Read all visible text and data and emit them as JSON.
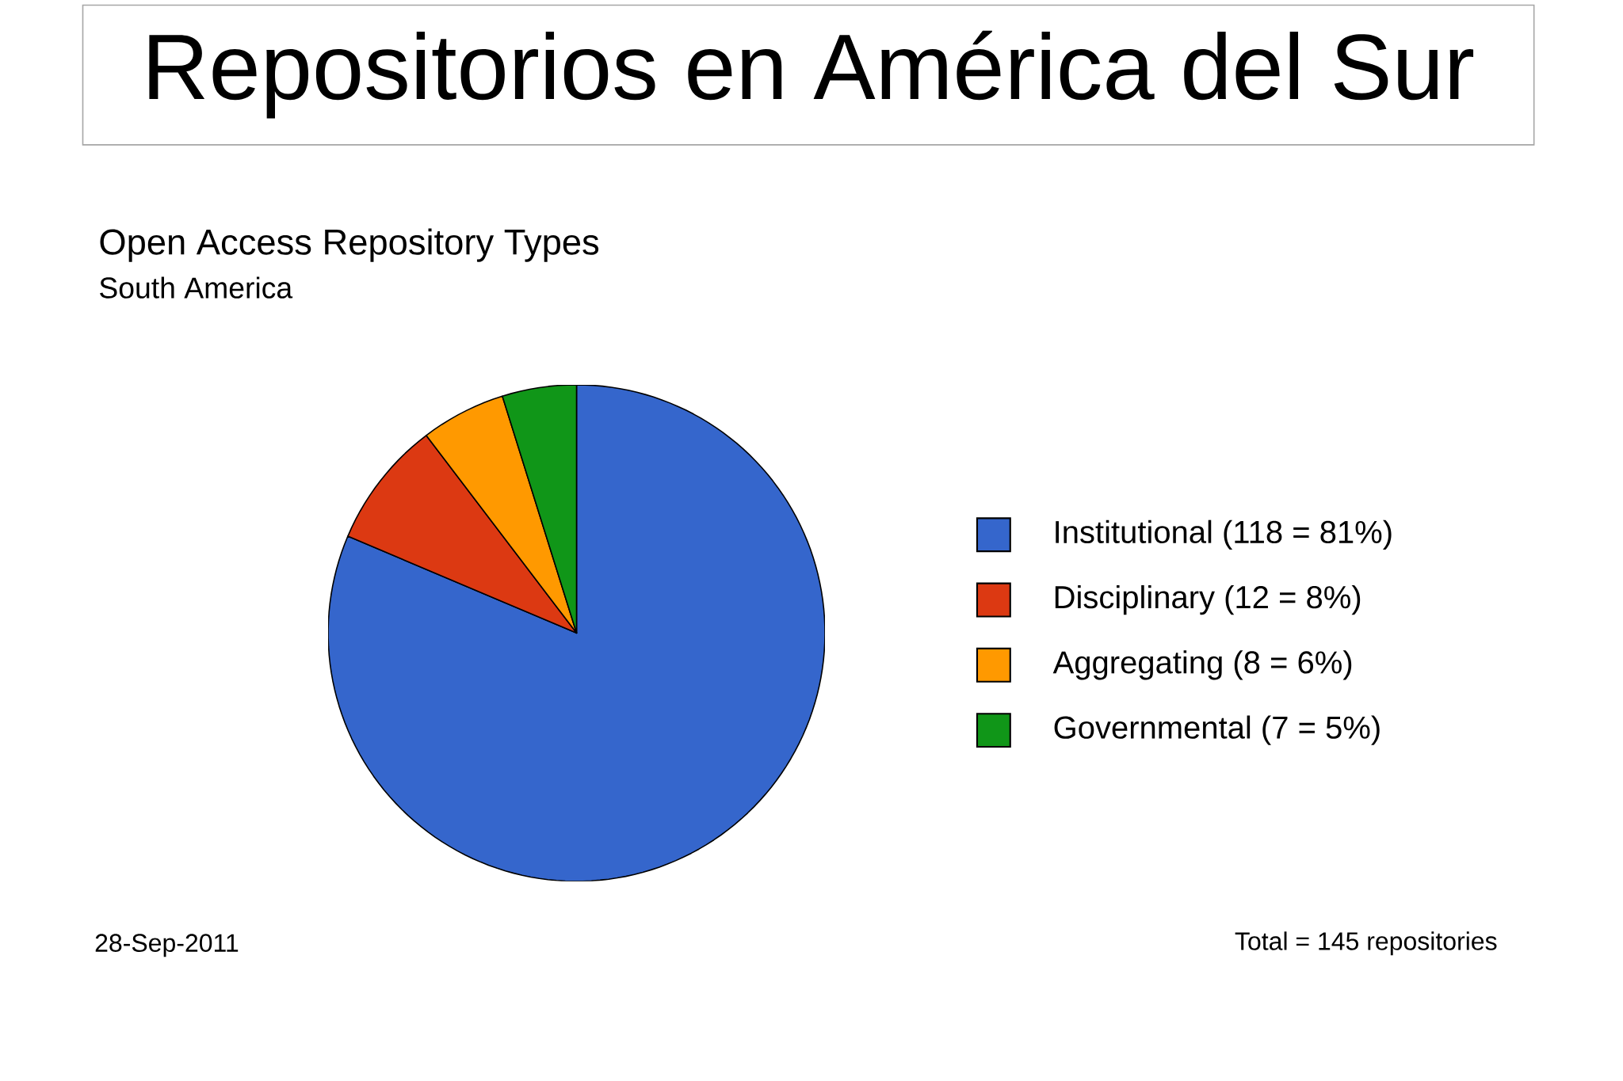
{
  "chart_data": {
    "type": "pie",
    "title": "Repositorios en América del Sur",
    "subtitle": "Open Access Repository Types",
    "categories": [
      "Institutional (118 = 81%)",
      "Disciplinary (12 = 8%)",
      "Aggregating (8 = 6%)",
      "Governmental (7 = 5%)"
    ],
    "values": [
      118,
      12,
      8,
      7
    ],
    "colors": [
      "#3566cc",
      "#dc3912",
      "#ff9900",
      "#109618"
    ],
    "legend": "right",
    "annotations": [
      "South America",
      "28-Sep-2011",
      "Total = 145 repositories"
    ]
  }
}
